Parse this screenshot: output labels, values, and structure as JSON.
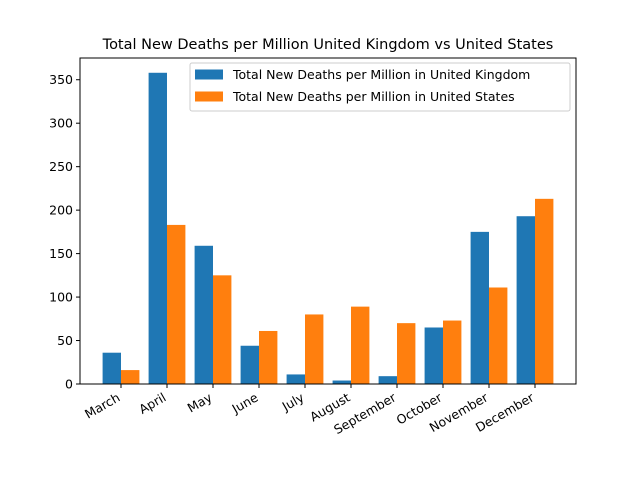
{
  "chart_data": {
    "type": "bar",
    "title": "Total New Deaths per Million United Kingdom vs United States",
    "xlabel": "",
    "ylabel": "",
    "categories": [
      "March",
      "April",
      "May",
      "June",
      "July",
      "August",
      "September",
      "October",
      "November",
      "December"
    ],
    "series": [
      {
        "name": "Total New Deaths per Million in United Kingdom",
        "color": "#1f77b4",
        "values": [
          36,
          358,
          159,
          44,
          11,
          4,
          9,
          65,
          175,
          193
        ]
      },
      {
        "name": "Total New Deaths per Million in United States",
        "color": "#ff7f0e",
        "values": [
          16,
          183,
          125,
          61,
          80,
          89,
          70,
          73,
          111,
          213
        ]
      }
    ],
    "ylim": [
      0,
      375
    ],
    "yticks": [
      0,
      50,
      100,
      150,
      200,
      250,
      300,
      350
    ],
    "legend_position": "top-right",
    "grid": false
  }
}
